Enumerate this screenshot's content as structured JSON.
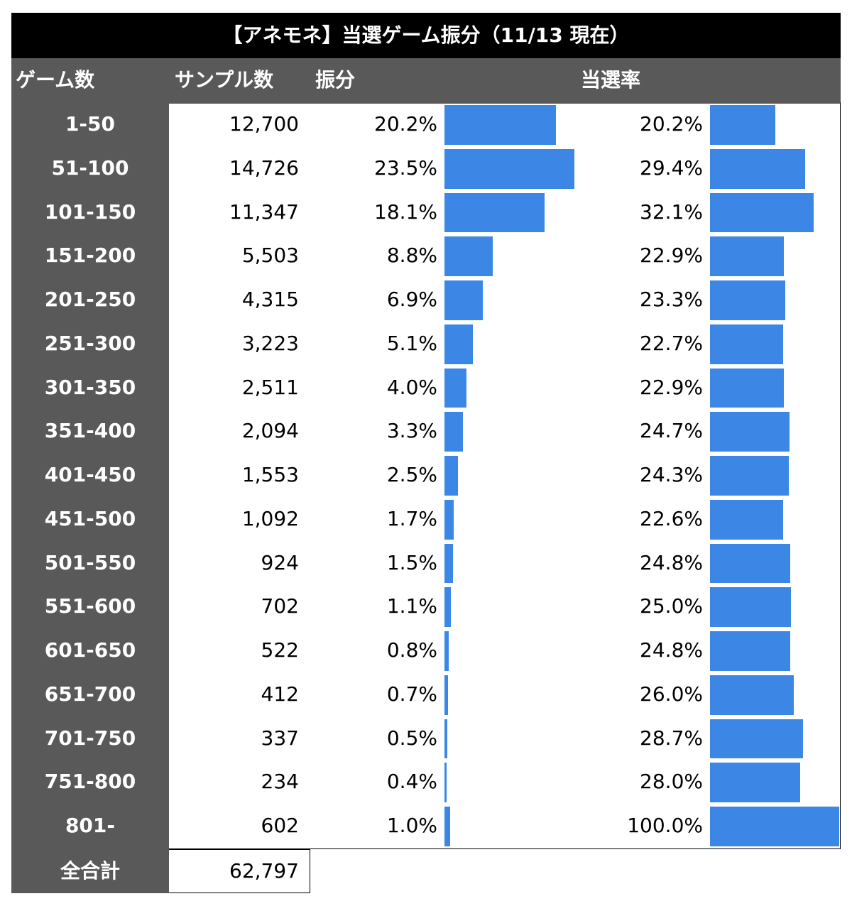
{
  "header": {
    "title": "【アネモネ】当選ゲーム振分（11/13 現在）"
  },
  "table": {
    "columns": [
      "ゲーム数",
      "サンプル数",
      "振分",
      "当選率"
    ],
    "rows": [
      {
        "range": "1-50",
        "samples": "12,700",
        "share": {
          "value": 20.2,
          "label": "20.2%"
        },
        "rate": {
          "value": 20.2,
          "label": "20.2%"
        }
      },
      {
        "range": "51-100",
        "samples": "14,726",
        "share": {
          "value": 23.5,
          "label": "23.5%"
        },
        "rate": {
          "value": 29.4,
          "label": "29.4%"
        }
      },
      {
        "range": "101-150",
        "samples": "11,347",
        "share": {
          "value": 18.1,
          "label": "18.1%"
        },
        "rate": {
          "value": 32.1,
          "label": "32.1%"
        }
      },
      {
        "range": "151-200",
        "samples": "5,503",
        "share": {
          "value": 8.8,
          "label": "8.8%"
        },
        "rate": {
          "value": 22.9,
          "label": "22.9%"
        }
      },
      {
        "range": "201-250",
        "samples": "4,315",
        "share": {
          "value": 6.9,
          "label": "6.9%"
        },
        "rate": {
          "value": 23.3,
          "label": "23.3%"
        }
      },
      {
        "range": "251-300",
        "samples": "3,223",
        "share": {
          "value": 5.1,
          "label": "5.1%"
        },
        "rate": {
          "value": 22.7,
          "label": "22.7%"
        }
      },
      {
        "range": "301-350",
        "samples": "2,511",
        "share": {
          "value": 4.0,
          "label": "4.0%"
        },
        "rate": {
          "value": 22.9,
          "label": "22.9%"
        }
      },
      {
        "range": "351-400",
        "samples": "2,094",
        "share": {
          "value": 3.3,
          "label": "3.3%"
        },
        "rate": {
          "value": 24.7,
          "label": "24.7%"
        }
      },
      {
        "range": "401-450",
        "samples": "1,553",
        "share": {
          "value": 2.5,
          "label": "2.5%"
        },
        "rate": {
          "value": 24.3,
          "label": "24.3%"
        }
      },
      {
        "range": "451-500",
        "samples": "1,092",
        "share": {
          "value": 1.7,
          "label": "1.7%"
        },
        "rate": {
          "value": 22.6,
          "label": "22.6%"
        }
      },
      {
        "range": "501-550",
        "samples": "924",
        "share": {
          "value": 1.5,
          "label": "1.5%"
        },
        "rate": {
          "value": 24.8,
          "label": "24.8%"
        }
      },
      {
        "range": "551-600",
        "samples": "702",
        "share": {
          "value": 1.1,
          "label": "1.1%"
        },
        "rate": {
          "value": 25.0,
          "label": "25.0%"
        }
      },
      {
        "range": "601-650",
        "samples": "522",
        "share": {
          "value": 0.8,
          "label": "0.8%"
        },
        "rate": {
          "value": 24.8,
          "label": "24.8%"
        }
      },
      {
        "range": "651-700",
        "samples": "412",
        "share": {
          "value": 0.7,
          "label": "0.7%"
        },
        "rate": {
          "value": 26.0,
          "label": "26.0%"
        }
      },
      {
        "range": "701-750",
        "samples": "337",
        "share": {
          "value": 0.5,
          "label": "0.5%"
        },
        "rate": {
          "value": 28.7,
          "label": "28.7%"
        }
      },
      {
        "range": "751-800",
        "samples": "234",
        "share": {
          "value": 0.4,
          "label": "0.4%"
        },
        "rate": {
          "value": 28.0,
          "label": "28.0%"
        }
      },
      {
        "range": "801-",
        "samples": "602",
        "share": {
          "value": 1.0,
          "label": "1.0%"
        },
        "rate": {
          "value": 100.0,
          "label": "100.0%"
        }
      }
    ],
    "total": {
      "label": "全合計",
      "samples": "62,797"
    }
  }
}
